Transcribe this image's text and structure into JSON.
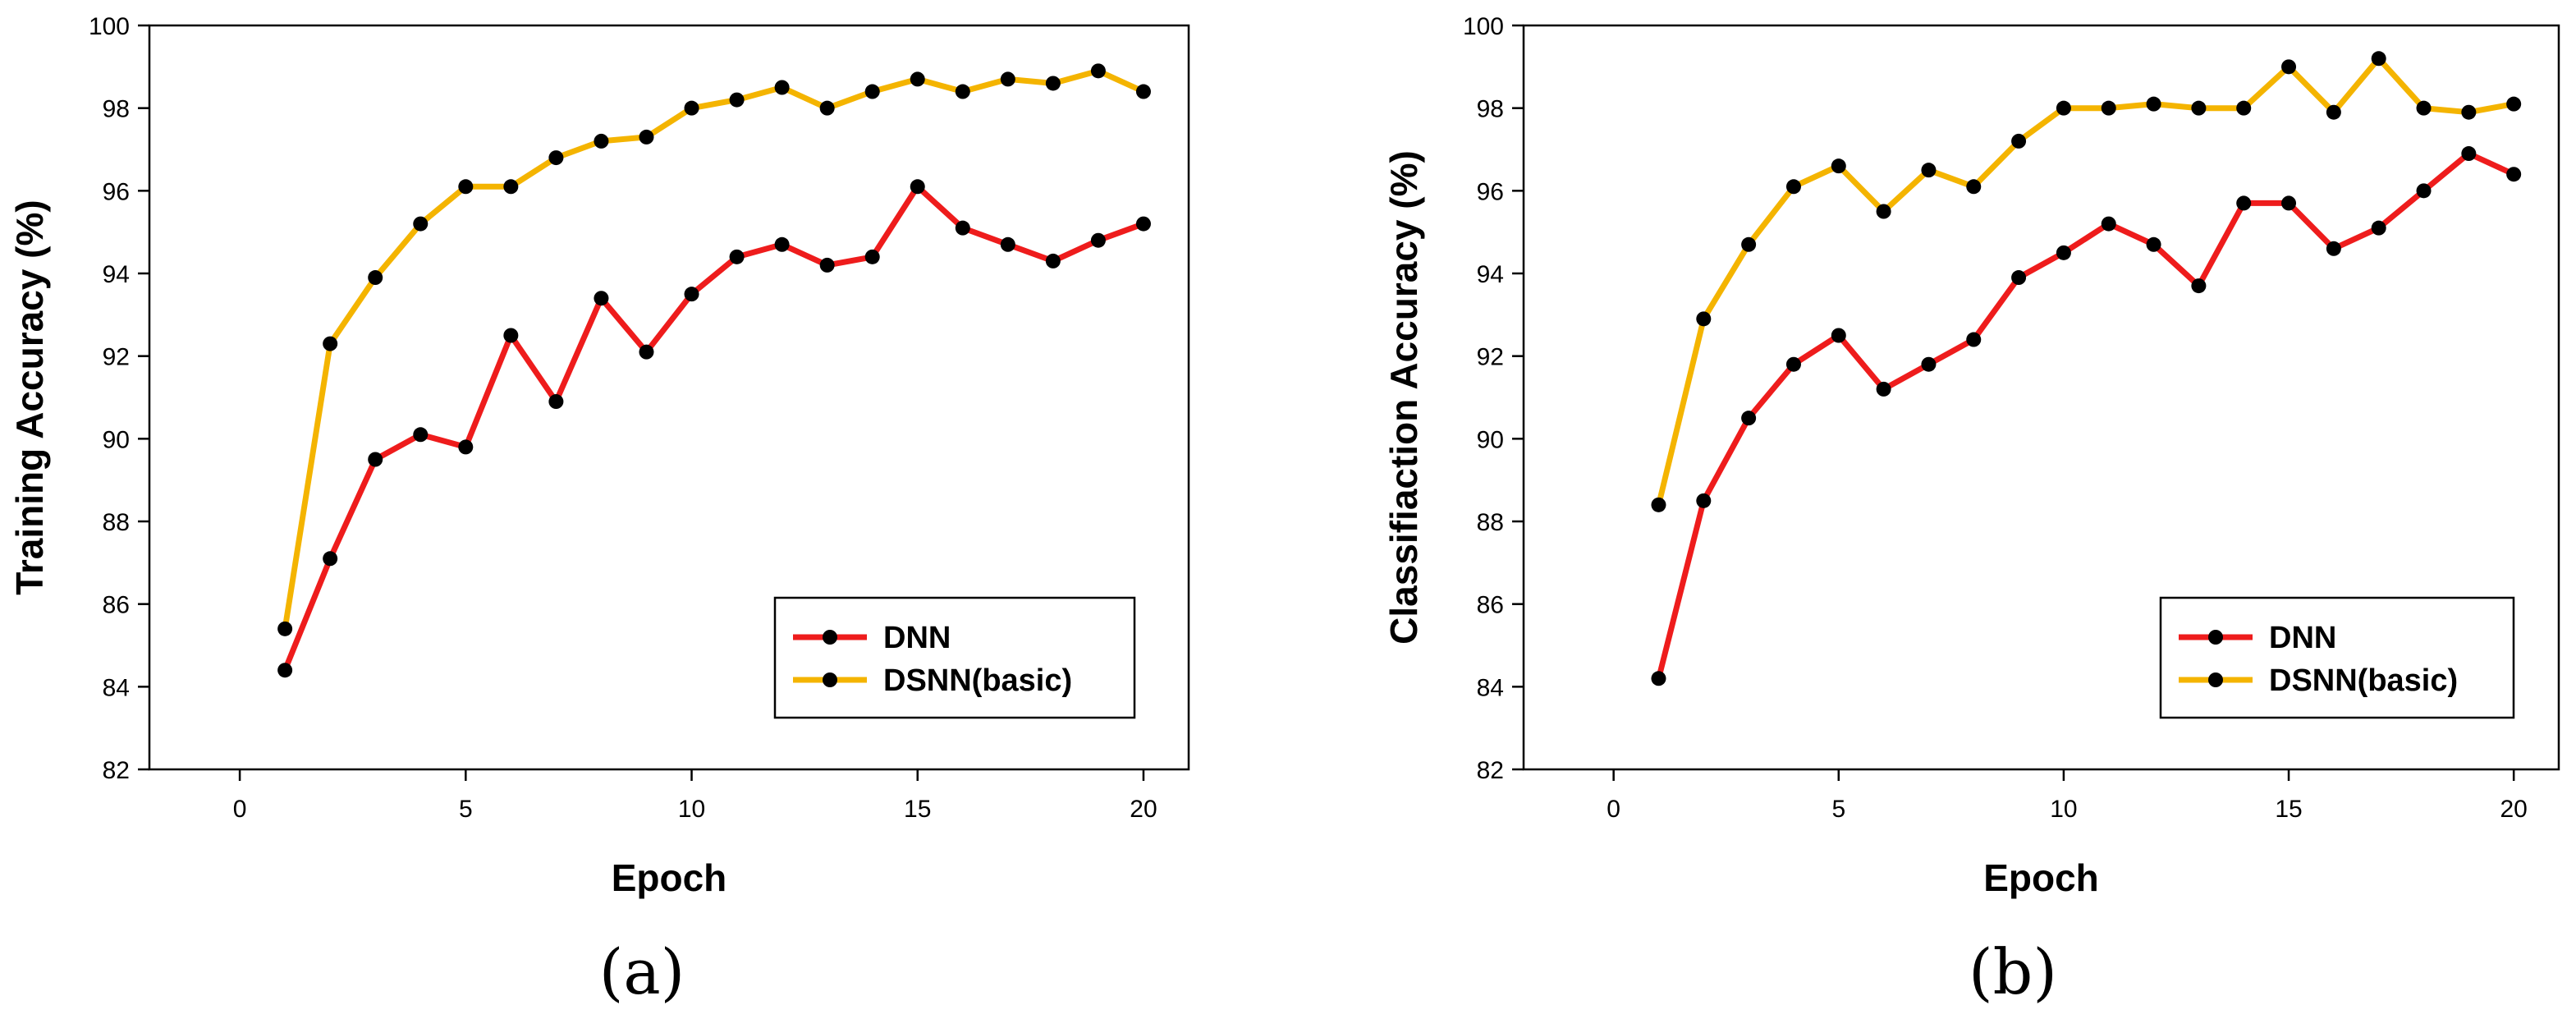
{
  "colors": {
    "dnn": "#ee1c1c",
    "dsnn": "#f4b400",
    "marker": "#000000",
    "axis": "#000000"
  },
  "chart_data": [
    {
      "type": "line",
      "panel_label": "(a)",
      "xlabel": "Epoch",
      "ylabel": "Training Accuracy (%)",
      "xlim": [
        -2,
        21
      ],
      "ylim": [
        82,
        100
      ],
      "xticks": [
        0,
        5,
        10,
        15,
        20
      ],
      "yticks": [
        82,
        84,
        86,
        88,
        90,
        92,
        94,
        96,
        98,
        100
      ],
      "legend_position": "lower-right",
      "x": [
        1,
        2,
        3,
        4,
        5,
        6,
        7,
        8,
        9,
        10,
        11,
        12,
        13,
        14,
        15,
        16,
        17,
        18,
        19,
        20
      ],
      "series": [
        {
          "name": "DNN",
          "color": "#ee1c1c",
          "values": [
            84.4,
            87.1,
            89.5,
            90.1,
            89.8,
            92.5,
            90.9,
            93.4,
            92.1,
            93.5,
            94.4,
            94.7,
            94.2,
            94.4,
            96.1,
            95.1,
            94.7,
            94.3,
            94.8,
            95.2
          ]
        },
        {
          "name": "DSNN(basic)",
          "color": "#f4b400",
          "values": [
            85.4,
            92.3,
            93.9,
            95.2,
            96.1,
            96.1,
            96.8,
            97.2,
            97.3,
            98.0,
            98.2,
            98.5,
            98.0,
            98.4,
            98.7,
            98.4,
            98.7,
            98.6,
            98.9,
            98.4
          ]
        }
      ]
    },
    {
      "type": "line",
      "panel_label": "(b)",
      "xlabel": "Epoch",
      "ylabel": "Classifiaction Accuracy (%)",
      "xlim": [
        -2,
        21
      ],
      "ylim": [
        82,
        100
      ],
      "xticks": [
        0,
        5,
        10,
        15,
        20
      ],
      "yticks": [
        82,
        84,
        86,
        88,
        90,
        92,
        94,
        96,
        98,
        100
      ],
      "legend_position": "lower-right",
      "x": [
        1,
        2,
        3,
        4,
        5,
        6,
        7,
        8,
        9,
        10,
        11,
        12,
        13,
        14,
        15,
        16,
        17,
        18,
        19,
        20
      ],
      "series": [
        {
          "name": "DNN",
          "color": "#ee1c1c",
          "values": [
            84.2,
            88.5,
            90.5,
            91.8,
            92.5,
            91.2,
            91.8,
            92.4,
            93.9,
            94.5,
            95.2,
            94.7,
            93.7,
            95.7,
            95.7,
            94.6,
            95.1,
            96.0,
            96.9,
            96.4
          ]
        },
        {
          "name": "DSNN(basic)",
          "color": "#f4b400",
          "values": [
            88.4,
            92.9,
            94.7,
            96.1,
            96.6,
            95.5,
            96.5,
            96.1,
            97.2,
            98.0,
            98.0,
            98.1,
            98.0,
            98.0,
            99.0,
            97.9,
            99.2,
            98.0,
            97.9,
            98.1
          ]
        }
      ]
    }
  ]
}
